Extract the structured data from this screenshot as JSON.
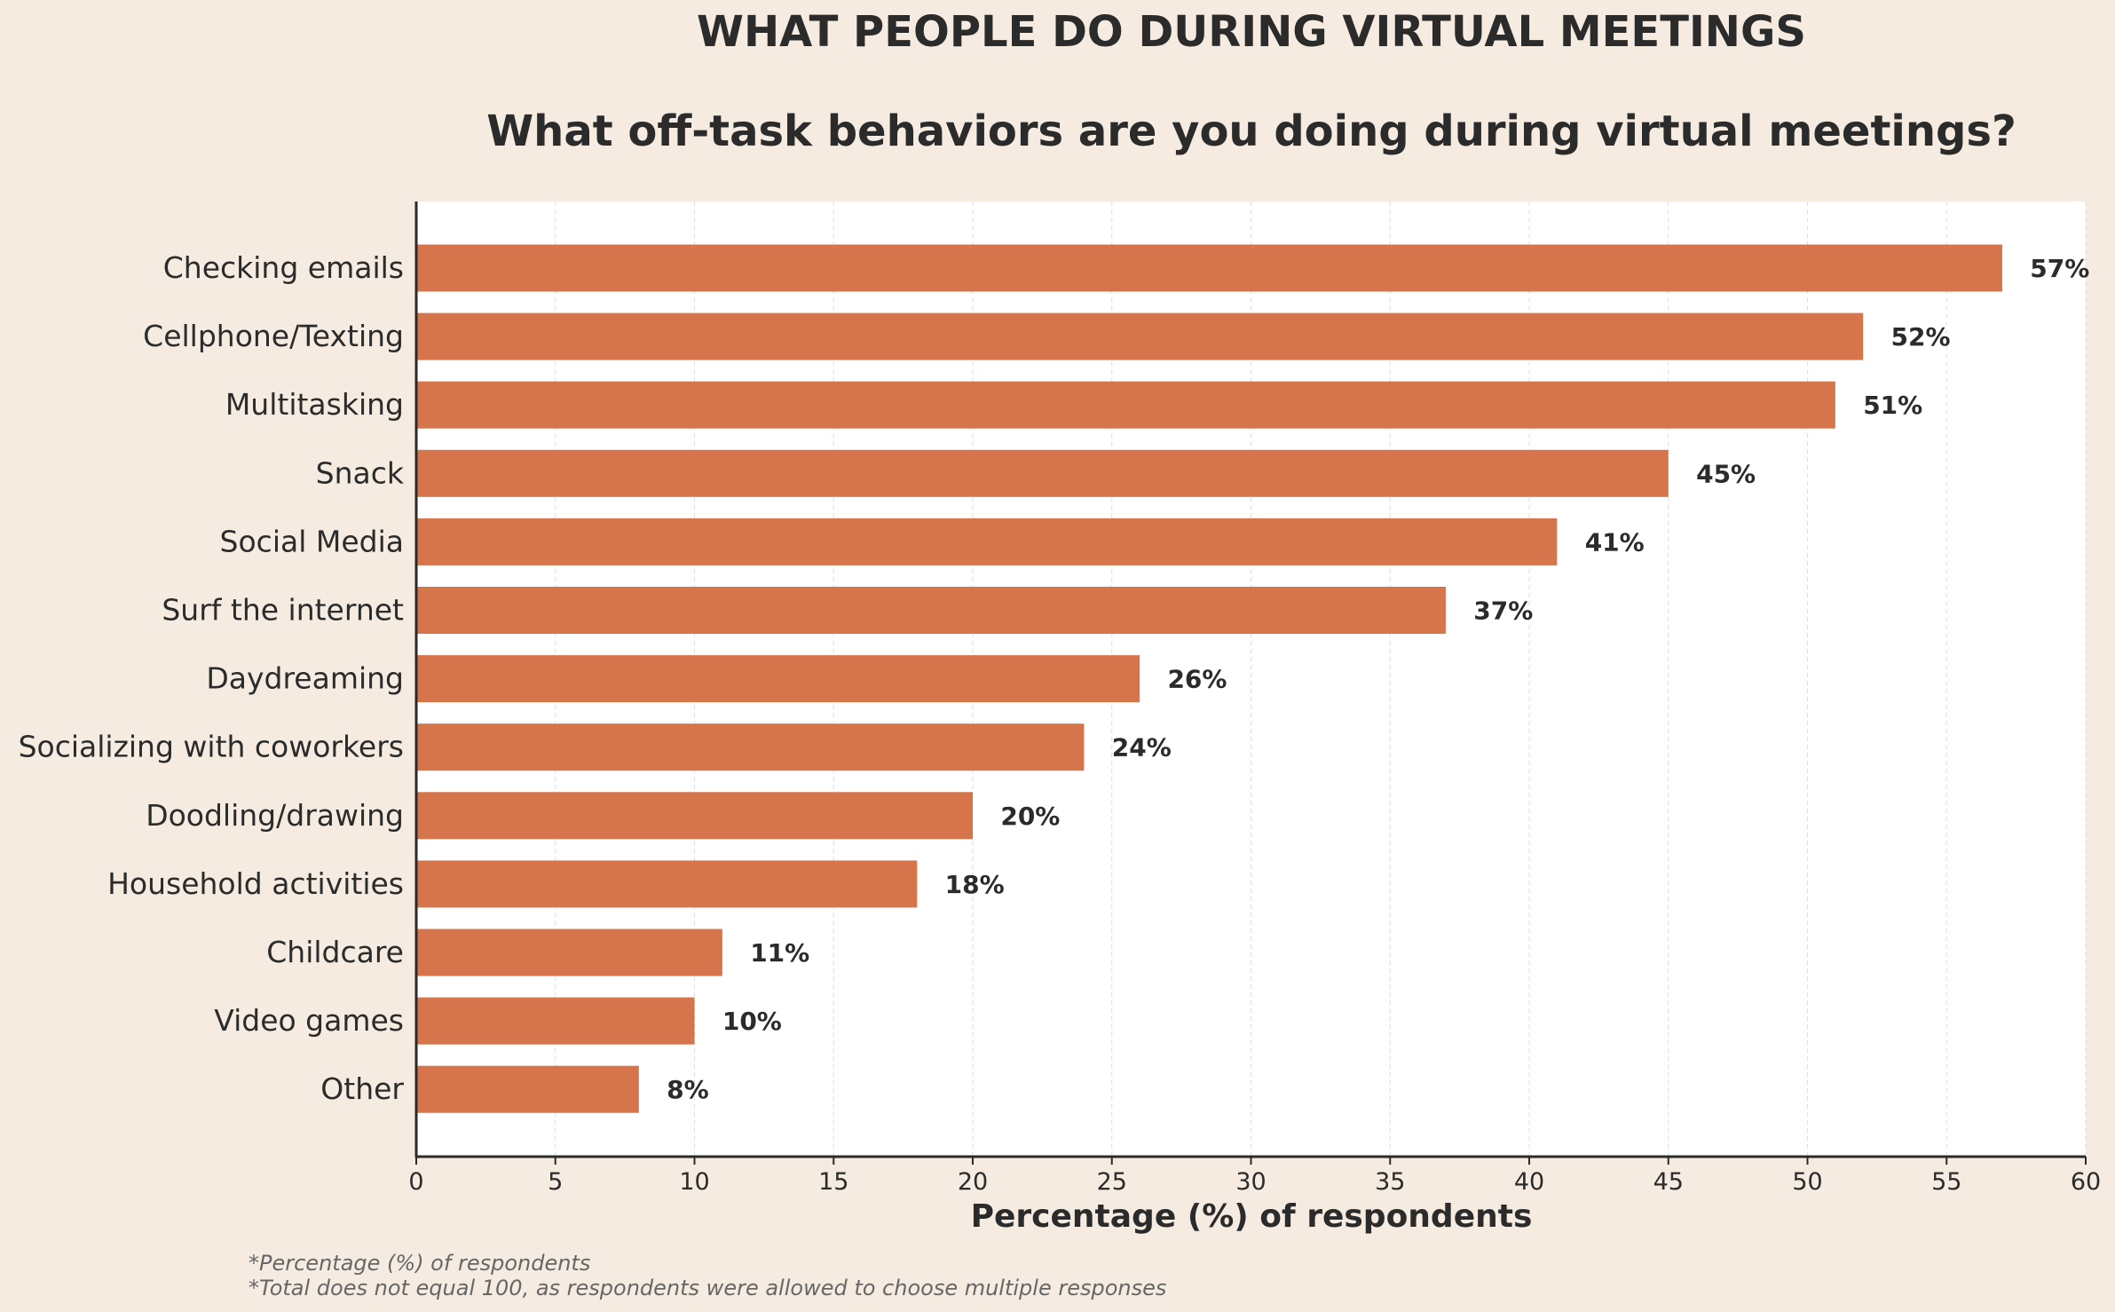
{
  "chart_data": {
    "type": "bar",
    "orientation": "horizontal",
    "title": "WHAT PEOPLE DO DURING VIRTUAL MEETINGS",
    "subtitle": "What off-task behaviors are you doing during virtual meetings?",
    "xlabel": "Percentage (%) of respondents",
    "ylabel": "",
    "categories": [
      "Checking emails",
      "Cellphone/Texting",
      "Multitasking",
      "Snack",
      "Social Media",
      "Surf the internet",
      "Daydreaming",
      "Socializing with coworkers",
      "Doodling/drawing",
      "Household activities",
      "Childcare",
      "Video games",
      "Other"
    ],
    "values": [
      57,
      52,
      51,
      45,
      41,
      37,
      26,
      24,
      20,
      18,
      11,
      10,
      8
    ],
    "value_labels": [
      "57%",
      "52%",
      "51%",
      "45%",
      "41%",
      "37%",
      "26%",
      "24%",
      "20%",
      "18%",
      "11%",
      "10%",
      "8%"
    ],
    "xlim": [
      0,
      60
    ],
    "xticks": [
      0,
      5,
      10,
      15,
      20,
      25,
      30,
      35,
      40,
      45,
      50,
      55,
      60
    ],
    "grid": "vertical dashed",
    "bar_color": "#d6744b",
    "background": "#f5ebe1",
    "plot_background": "#ffffff"
  },
  "footnotes": [
    "*Percentage (%) of respondents",
    "*Total does not equal 100, as respondents were allowed to choose multiple responses"
  ]
}
